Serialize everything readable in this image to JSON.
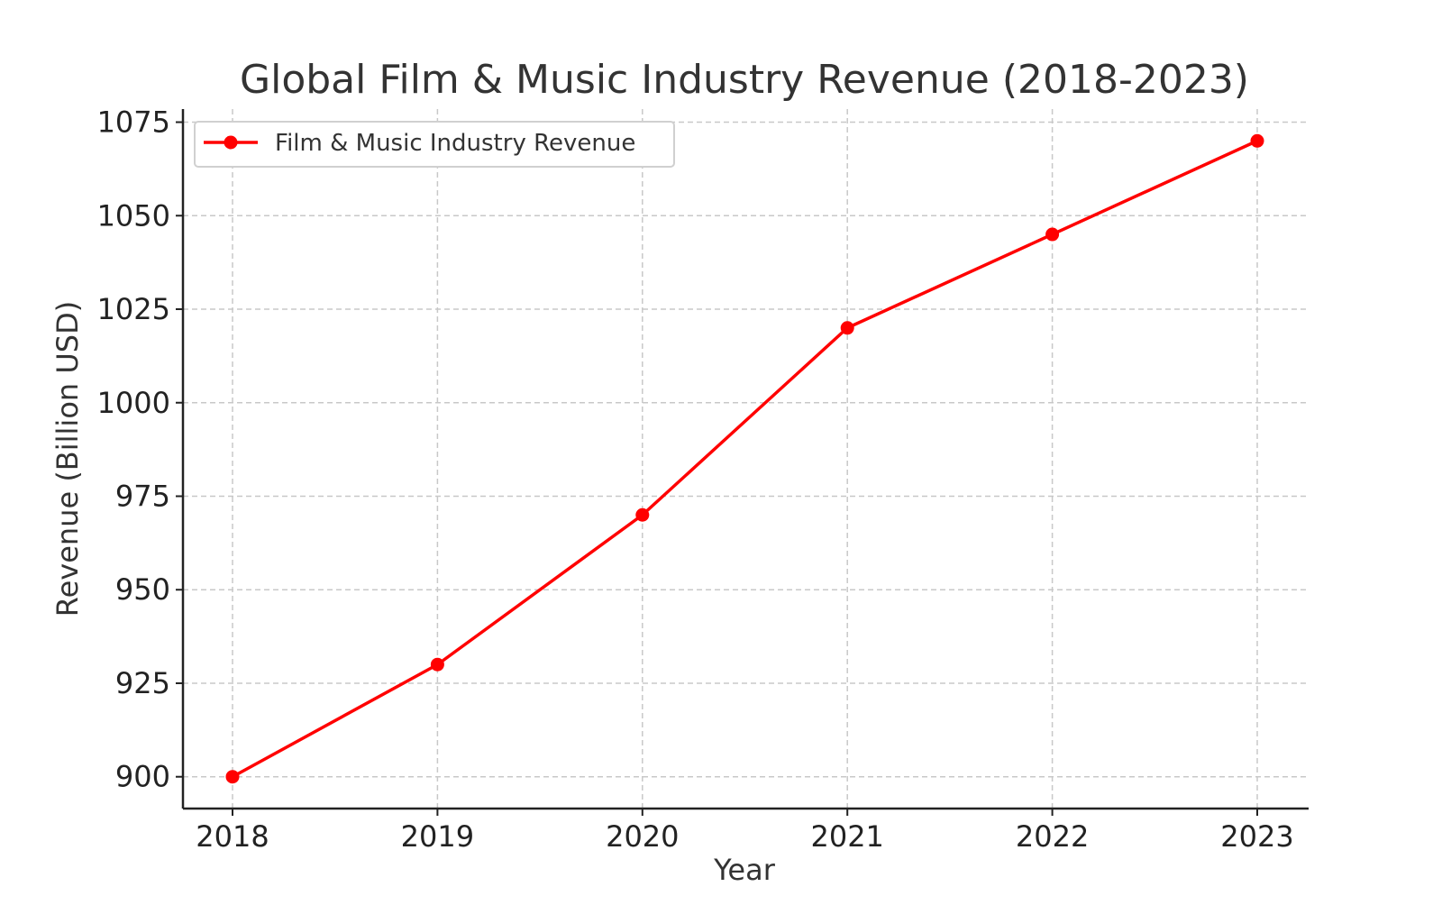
{
  "chart_data": {
    "type": "line",
    "title": "Global Film & Music Industry Revenue (2018-2023)",
    "xlabel": "Year",
    "ylabel": "Revenue (Billion USD)",
    "categories": [
      "2018",
      "2019",
      "2020",
      "2021",
      "2022",
      "2023"
    ],
    "yticks": [
      "900",
      "925",
      "950",
      "975",
      "1000",
      "1025",
      "1050",
      "1075"
    ],
    "ylim": [
      891.5,
      1078.5
    ],
    "series": [
      {
        "name": "Film & Music Industry Revenue",
        "values": [
          900,
          930,
          970,
          1020,
          1045,
          1070
        ],
        "color": "#ff0000",
        "marker": "circle"
      }
    ],
    "grid": true,
    "grid_style": "dashed",
    "legend_position": "upper left"
  }
}
